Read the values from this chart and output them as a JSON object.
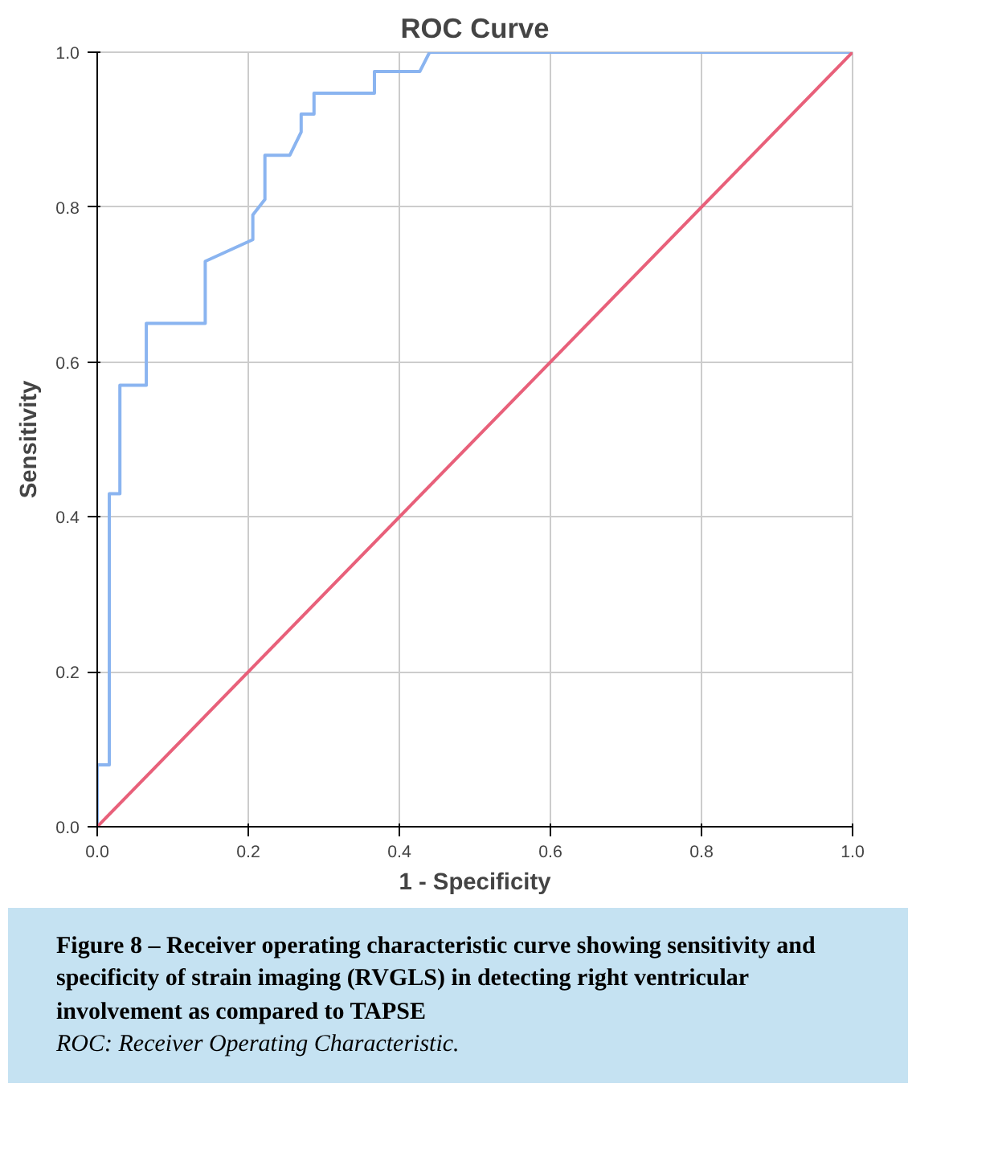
{
  "chart_data": {
    "type": "line",
    "title": "ROC Curve",
    "xlabel": "1 - Specificity",
    "ylabel": "Sensitivity",
    "series": [
      {
        "color": "#8ab4f0",
        "x": [
          0,
          0,
          0.016,
          0.016,
          0.03,
          0.03,
          0.065,
          0.065,
          0.143,
          0.143,
          0.206,
          0.206,
          0.222,
          0.222,
          0.255,
          0.27,
          0.27,
          0.287,
          0.287,
          0.367,
          0.367,
          0.427,
          0.44,
          1.0
        ],
        "values": [
          0,
          0.08,
          0.08,
          0.43,
          0.43,
          0.57,
          0.57,
          0.65,
          0.65,
          0.73,
          0.758,
          0.79,
          0.81,
          0.867,
          0.867,
          0.897,
          0.92,
          0.92,
          0.947,
          0.947,
          0.975,
          0.975,
          1.0,
          1.0
        ]
      },
      {
        "color": "#e8607a",
        "x": [
          0,
          1
        ],
        "values": [
          0,
          1
        ]
      }
    ],
    "xlim": [
      0,
      1
    ],
    "ylim": [
      0,
      1
    ],
    "xticks": [
      {
        "value": 0,
        "label": "0.0"
      },
      0.2,
      0.4,
      0.6,
      0.8,
      {
        "value": 1,
        "label": "1.0"
      }
    ],
    "yticks": [
      {
        "value": 0,
        "label": "0.0"
      },
      0.2,
      0.4,
      0.6,
      0.8,
      {
        "value": 1,
        "label": "1.0"
      }
    ],
    "grid": true,
    "annotations": [
      "Figure 8 – Receiver operating characteristic curve showing sensitivity and specificity of strain imaging (RVGLS) in detecting right ventricular involvement as compared to TAPSE",
      "ROC: Receiver Operating Characteristic."
    ]
  }
}
